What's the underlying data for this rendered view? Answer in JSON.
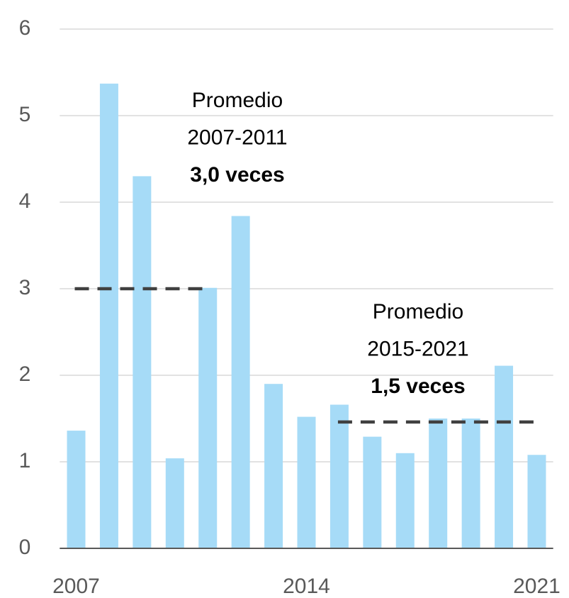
{
  "chart_data": {
    "type": "bar",
    "categories": [
      "2007",
      null,
      null,
      null,
      null,
      null,
      null,
      "2014",
      null,
      null,
      null,
      null,
      null,
      null,
      "2021"
    ],
    "values": [
      1.36,
      5.37,
      4.3,
      1.04,
      3.01,
      3.84,
      1.9,
      1.52,
      1.66,
      1.29,
      1.1,
      1.5,
      1.5,
      2.11,
      1.08
    ],
    "color": "#a6dbf7",
    "ylim": [
      0,
      6
    ],
    "yticks": [
      0,
      1,
      2,
      3,
      4,
      5,
      6
    ],
    "grid": true,
    "averages": [
      {
        "lines": [
          "Promedio",
          "2007-2011",
          "3,0 veces"
        ],
        "value": 3.0,
        "color": "#404040"
      },
      {
        "lines": [
          "Promedio",
          "2015-2021",
          "1,5 veces"
        ],
        "value": 1.46,
        "color": "#404040"
      }
    ]
  }
}
